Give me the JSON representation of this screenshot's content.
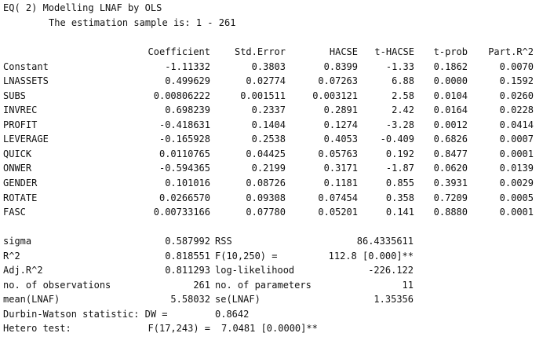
{
  "header": {
    "title": "EQ( 2) Modelling LNAF by OLS",
    "sample": "The estimation sample is: 1 - 261"
  },
  "table": {
    "columns": [
      "Coefficient",
      "Std.Error",
      "HACSE",
      "t-HACSE",
      "t-prob",
      "Part.R^2"
    ],
    "rows": [
      [
        "Constant",
        "-1.11332",
        "0.3803",
        "0.8399",
        "-1.33",
        "0.1862",
        "0.0070"
      ],
      [
        "LNASSETS",
        "0.499629",
        "0.02774",
        "0.07263",
        "6.88",
        "0.0000",
        "0.1592"
      ],
      [
        "SUBS",
        "0.00806222",
        "0.001511",
        "0.003121",
        "2.58",
        "0.0104",
        "0.0260"
      ],
      [
        "INVREC",
        "0.698239",
        "0.2337",
        "0.2891",
        "2.42",
        "0.0164",
        "0.0228"
      ],
      [
        "PROFIT",
        "-0.418631",
        "0.1404",
        "0.1274",
        "-3.28",
        "0.0012",
        "0.0414"
      ],
      [
        "LEVERAGE",
        "-0.165928",
        "0.2538",
        "0.4053",
        "-0.409",
        "0.6826",
        "0.0007"
      ],
      [
        "QUICK",
        "0.0110765",
        "0.04425",
        "0.05763",
        "0.192",
        "0.8477",
        "0.0001"
      ],
      [
        "ONWER",
        "-0.594365",
        "0.2199",
        "0.3171",
        "-1.87",
        "0.0620",
        "0.0139"
      ],
      [
        "GENDER",
        "0.101016",
        "0.08726",
        "0.1181",
        "0.855",
        "0.3931",
        "0.0029"
      ],
      [
        "ROTATE",
        "0.0266570",
        "0.09308",
        "0.07454",
        "0.358",
        "0.7209",
        "0.0005"
      ],
      [
        "FASC",
        "0.00733166",
        "0.07780",
        "0.05201",
        "0.141",
        "0.8880",
        "0.0001"
      ]
    ]
  },
  "stats": [
    [
      "sigma",
      "0.587992",
      "RSS",
      "86.4335611"
    ],
    [
      "R^2",
      "0.818551",
      "F(10,250) =",
      "112.8 [0.000]**"
    ],
    [
      "Adj.R^2",
      "0.811293",
      "log-likelihood",
      "-226.122"
    ],
    [
      "no. of observations",
      "261",
      "no. of parameters",
      "11"
    ],
    [
      "mean(LNAF)",
      "5.58032",
      "se(LNAF)",
      "1.35356"
    ]
  ],
  "dw": {
    "label": "Durbin-Watson statistic: DW =",
    "value": "0.8642"
  },
  "hetero": {
    "label": "Hetero test:",
    "test": "F(17,243) =",
    "value": "7.0481 [0.0000]**"
  }
}
